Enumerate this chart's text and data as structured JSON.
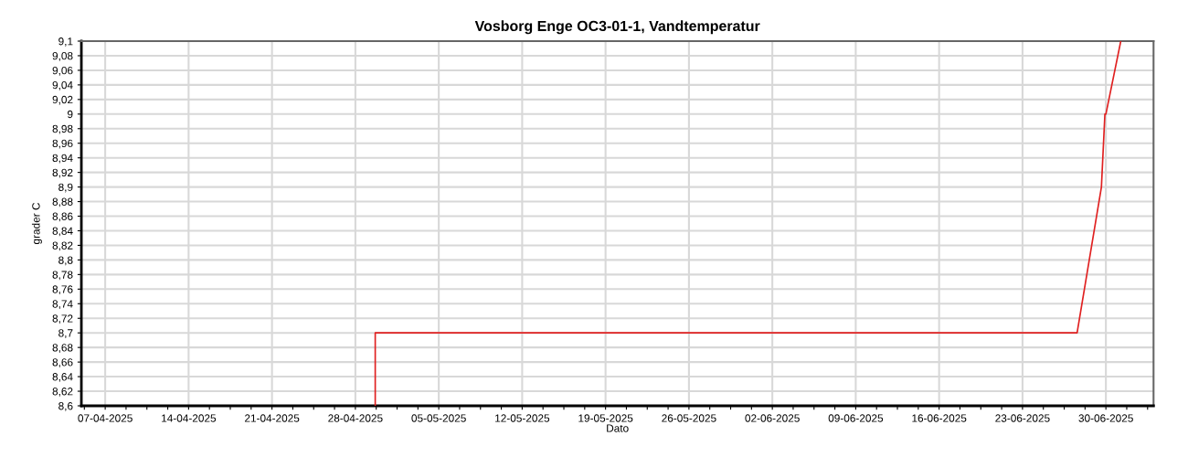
{
  "chart_data": {
    "type": "line",
    "title": "Vosborg Enge OC3-01-1, Vandtemperatur",
    "xlabel": "Dato",
    "ylabel": "grader C",
    "x": [
      "2025-04-29T16:00",
      "2025-04-29T16:00",
      "2025-06-27T14:00",
      "2025-06-29T15:00",
      "2025-06-29T22:00",
      "2025-06-30T00:00",
      "2025-07-01T06:00"
    ],
    "series": [
      {
        "color": "#e02020",
        "values": [
          8.6,
          8.7,
          8.7,
          8.9,
          9.0,
          9.0,
          9.1
        ]
      }
    ],
    "xlim": [
      "2025-04-05",
      "2025-07-04"
    ],
    "xticks": [
      {
        "value": "2025-04-05T06:00",
        "label": null
      },
      {
        "value": "2025-04-07",
        "label": "07-04-2025"
      },
      {
        "value": "2025-04-08T18:00",
        "label": null
      },
      {
        "value": "2025-04-10T12:00",
        "label": null
      },
      {
        "value": "2025-04-12T06:00",
        "label": null
      },
      {
        "value": "2025-04-14",
        "label": "14-04-2025"
      },
      {
        "value": "2025-04-15T18:00",
        "label": null
      },
      {
        "value": "2025-04-17T12:00",
        "label": null
      },
      {
        "value": "2025-04-19T06:00",
        "label": null
      },
      {
        "value": "2025-04-21",
        "label": "21-04-2025"
      },
      {
        "value": "2025-04-22T18:00",
        "label": null
      },
      {
        "value": "2025-04-24T12:00",
        "label": null
      },
      {
        "value": "2025-04-26T06:00",
        "label": null
      },
      {
        "value": "2025-04-28",
        "label": "28-04-2025"
      },
      {
        "value": "2025-04-29T18:00",
        "label": null
      },
      {
        "value": "2025-05-01T12:00",
        "label": null
      },
      {
        "value": "2025-05-03T06:00",
        "label": null
      },
      {
        "value": "2025-05-05",
        "label": "05-05-2025"
      },
      {
        "value": "2025-05-06T18:00",
        "label": null
      },
      {
        "value": "2025-05-08T12:00",
        "label": null
      },
      {
        "value": "2025-05-10T06:00",
        "label": null
      },
      {
        "value": "2025-05-12",
        "label": "12-05-2025"
      },
      {
        "value": "2025-05-13T18:00",
        "label": null
      },
      {
        "value": "2025-05-15T12:00",
        "label": null
      },
      {
        "value": "2025-05-17T06:00",
        "label": null
      },
      {
        "value": "2025-05-19",
        "label": "19-05-2025"
      },
      {
        "value": "2025-05-20T18:00",
        "label": null
      },
      {
        "value": "2025-05-22T12:00",
        "label": null
      },
      {
        "value": "2025-05-24T06:00",
        "label": null
      },
      {
        "value": "2025-05-26",
        "label": "26-05-2025"
      },
      {
        "value": "2025-05-27T18:00",
        "label": null
      },
      {
        "value": "2025-05-29T12:00",
        "label": null
      },
      {
        "value": "2025-05-31T06:00",
        "label": null
      },
      {
        "value": "2025-06-02",
        "label": "02-06-2025"
      },
      {
        "value": "2025-06-03T18:00",
        "label": null
      },
      {
        "value": "2025-06-05T12:00",
        "label": null
      },
      {
        "value": "2025-06-07T06:00",
        "label": null
      },
      {
        "value": "2025-06-09",
        "label": "09-06-2025"
      },
      {
        "value": "2025-06-10T18:00",
        "label": null
      },
      {
        "value": "2025-06-12T12:00",
        "label": null
      },
      {
        "value": "2025-06-14T06:00",
        "label": null
      },
      {
        "value": "2025-06-16",
        "label": "16-06-2025"
      },
      {
        "value": "2025-06-17T18:00",
        "label": null
      },
      {
        "value": "2025-06-19T12:00",
        "label": null
      },
      {
        "value": "2025-06-21T06:00",
        "label": null
      },
      {
        "value": "2025-06-23",
        "label": "23-06-2025"
      },
      {
        "value": "2025-06-24T18:00",
        "label": null
      },
      {
        "value": "2025-06-26T12:00",
        "label": null
      },
      {
        "value": "2025-06-28T06:00",
        "label": null
      },
      {
        "value": "2025-06-30",
        "label": "30-06-2025"
      },
      {
        "value": "2025-07-01T18:00",
        "label": null
      },
      {
        "value": "2025-07-03T12:00",
        "label": null
      }
    ],
    "ylim": [
      8.6,
      9.1
    ],
    "yticks": [
      {
        "value": 8.6,
        "label": "8,6"
      },
      {
        "value": 8.62,
        "label": "8,62"
      },
      {
        "value": 8.64,
        "label": "8,64"
      },
      {
        "value": 8.66,
        "label": "8,66"
      },
      {
        "value": 8.68,
        "label": "8,68"
      },
      {
        "value": 8.7,
        "label": "8,7"
      },
      {
        "value": 8.72,
        "label": "8,72"
      },
      {
        "value": 8.74,
        "label": "8,74"
      },
      {
        "value": 8.76,
        "label": "8,76"
      },
      {
        "value": 8.78,
        "label": "8,78"
      },
      {
        "value": 8.8,
        "label": "8,8"
      },
      {
        "value": 8.82,
        "label": "8,82"
      },
      {
        "value": 8.84,
        "label": "8,84"
      },
      {
        "value": 8.86,
        "label": "8,86"
      },
      {
        "value": 8.88,
        "label": "8,88"
      },
      {
        "value": 8.9,
        "label": "8,9"
      },
      {
        "value": 8.92,
        "label": "8,92"
      },
      {
        "value": 8.94,
        "label": "8,94"
      },
      {
        "value": 8.96,
        "label": "8,96"
      },
      {
        "value": 8.98,
        "label": "8,98"
      },
      {
        "value": 9.0,
        "label": "9"
      },
      {
        "value": 9.02,
        "label": "9,02"
      },
      {
        "value": 9.04,
        "label": "9,04"
      },
      {
        "value": 9.06,
        "label": "9,06"
      },
      {
        "value": 9.08,
        "label": "9,08"
      },
      {
        "value": 9.1,
        "label": "9,1"
      }
    ],
    "grid": true,
    "marker": "none",
    "line_style": "solid"
  }
}
